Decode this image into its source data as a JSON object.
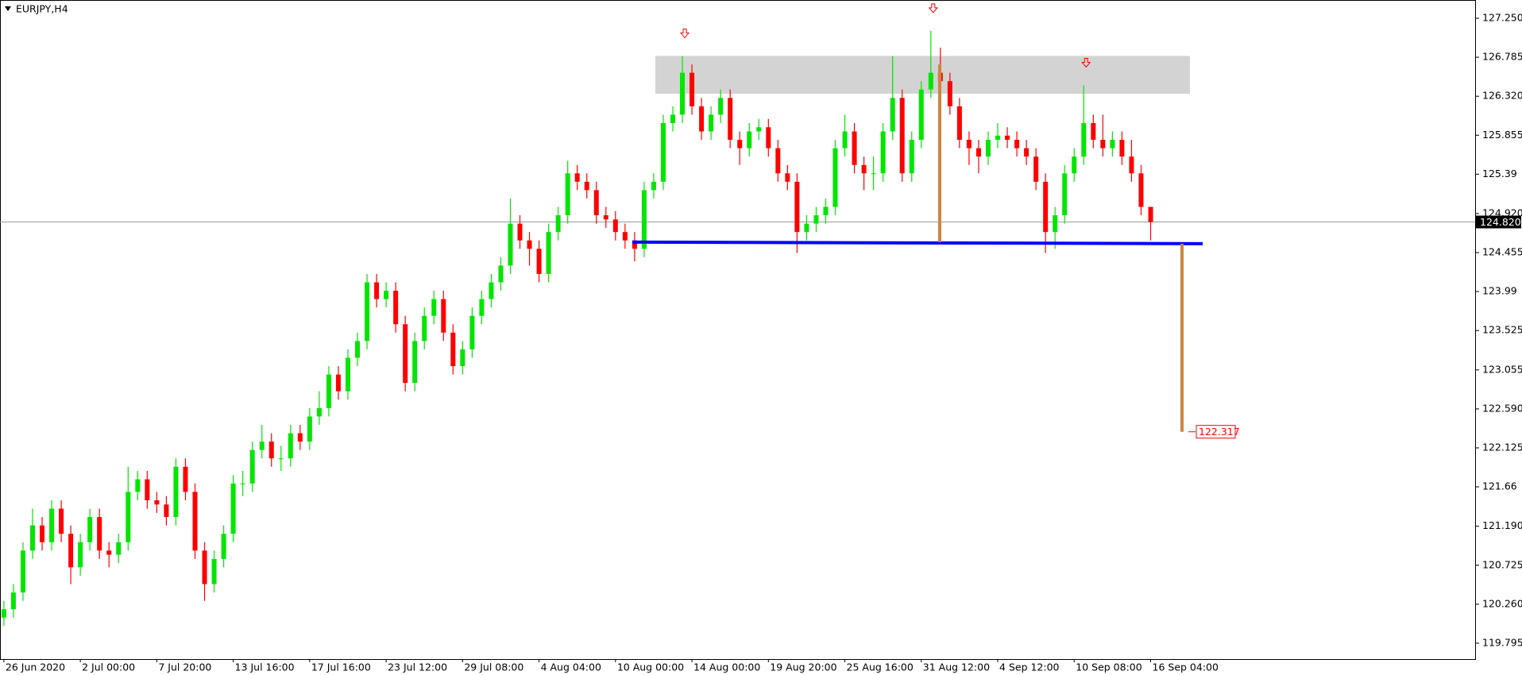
{
  "chart_data": {
    "type": "candlestick",
    "title": "EURJPY,H4",
    "bull_color": "#00e600",
    "bear_color": "#ff0000",
    "categories": [
      "26 Jun 2020",
      null,
      null,
      null,
      null,
      null,
      null,
      null,
      "2 Jul 00:00",
      null,
      null,
      null,
      null,
      null,
      null,
      null,
      "7 Jul 20:00",
      null,
      null,
      null,
      null,
      null,
      null,
      null,
      "13 Jul 16:00",
      null,
      null,
      null,
      null,
      null,
      null,
      null,
      "17 Jul 16:00",
      null,
      null,
      null,
      null,
      null,
      null,
      null,
      "23 Jul 12:00",
      null,
      null,
      null,
      null,
      null,
      null,
      null,
      "29 Jul 08:00",
      null,
      null,
      null,
      null,
      null,
      null,
      null,
      "4 Aug 04:00",
      null,
      null,
      null,
      null,
      null,
      null,
      null,
      "10 Aug 00:00",
      null,
      null,
      null,
      null,
      null,
      null,
      null,
      "14 Aug 00:00",
      null,
      null,
      null,
      null,
      null,
      null,
      null,
      "19 Aug 20:00",
      null,
      null,
      null,
      null,
      null,
      null,
      null,
      "25 Aug 16:00",
      null,
      null,
      null,
      null,
      null,
      null,
      null,
      "31 Aug 12:00",
      null,
      null,
      null,
      null,
      null,
      null,
      null,
      "4 Sep 12:00",
      null,
      null,
      null,
      null,
      null,
      null,
      null,
      "10 Sep 08:00",
      null,
      null,
      null,
      null,
      null,
      null,
      null,
      "16 Sep 04:00"
    ],
    "open": [
      120.1,
      120.2,
      120.4,
      120.9,
      121.2,
      121.0,
      121.4,
      121.1,
      120.7,
      121.0,
      121.3,
      120.9,
      120.85,
      121.0,
      121.6,
      121.75,
      121.5,
      121.45,
      121.3,
      121.9,
      121.6,
      120.9,
      120.5,
      120.8,
      121.1,
      121.7,
      121.7,
      122.1,
      122.2,
      122.0,
      122.0,
      122.3,
      122.2,
      122.5,
      122.6,
      123.0,
      122.8,
      123.2,
      123.4,
      124.1,
      123.9,
      124.0,
      123.6,
      122.9,
      123.4,
      123.7,
      123.9,
      123.5,
      123.1,
      123.3,
      123.7,
      123.9,
      124.1,
      124.3,
      124.8,
      124.6,
      124.5,
      124.2,
      124.7,
      124.9,
      125.4,
      125.3,
      125.2,
      124.9,
      124.85,
      124.7,
      124.6,
      124.5,
      125.2,
      125.3,
      126.0,
      126.1,
      126.6,
      126.2,
      125.9,
      126.1,
      126.3,
      125.8,
      125.7,
      125.9,
      125.95,
      125.7,
      125.4,
      125.3,
      124.7,
      124.8,
      124.9,
      125.0,
      125.7,
      125.9,
      125.5,
      125.4,
      125.4,
      125.9,
      126.3,
      125.4,
      125.8,
      126.4,
      126.6,
      126.5,
      126.2,
      125.8,
      125.7,
      125.6,
      125.8,
      125.85,
      125.8,
      125.7,
      125.6,
      125.3,
      124.7,
      124.9,
      125.4,
      125.6,
      126.0,
      125.8,
      125.7,
      125.8,
      125.6,
      125.4,
      125.0
    ],
    "high": [
      120.3,
      120.5,
      121.0,
      121.4,
      121.3,
      121.5,
      121.5,
      121.2,
      121.1,
      121.4,
      121.4,
      121.0,
      121.1,
      121.9,
      121.85,
      121.85,
      121.6,
      121.55,
      122.0,
      122.0,
      121.7,
      121.0,
      120.9,
      121.2,
      121.8,
      121.85,
      122.2,
      122.4,
      122.3,
      122.15,
      122.4,
      122.4,
      122.6,
      122.8,
      123.1,
      123.1,
      123.3,
      123.5,
      124.2,
      124.2,
      124.1,
      124.1,
      123.7,
      123.5,
      123.8,
      124.0,
      124.0,
      123.6,
      123.4,
      123.8,
      124.0,
      124.2,
      124.4,
      125.1,
      124.9,
      124.7,
      124.6,
      124.8,
      125.0,
      125.55,
      125.5,
      125.4,
      125.3,
      125.0,
      124.95,
      124.8,
      124.7,
      125.3,
      125.4,
      126.1,
      126.2,
      126.8,
      126.7,
      126.3,
      126.2,
      126.4,
      126.4,
      125.9,
      126.0,
      126.05,
      126.05,
      125.8,
      125.5,
      125.4,
      124.9,
      125.0,
      125.1,
      125.8,
      126.1,
      126.0,
      125.6,
      125.6,
      126.0,
      126.8,
      126.4,
      125.9,
      126.5,
      127.1,
      126.9,
      126.6,
      126.3,
      125.9,
      125.8,
      125.9,
      126.0,
      125.95,
      125.9,
      125.8,
      125.7,
      125.4,
      125.0,
      125.5,
      125.7,
      126.45,
      126.1,
      126.1,
      125.9,
      125.9,
      125.8,
      125.5,
      125.0
    ],
    "low": [
      120.0,
      120.1,
      120.3,
      120.8,
      120.9,
      120.9,
      121.0,
      120.5,
      120.6,
      120.9,
      120.8,
      120.7,
      120.75,
      120.9,
      121.5,
      121.4,
      121.35,
      121.2,
      121.2,
      121.5,
      120.8,
      120.3,
      120.4,
      120.7,
      121.0,
      121.55,
      121.6,
      122.0,
      121.9,
      121.85,
      121.9,
      122.1,
      122.1,
      122.4,
      122.5,
      122.7,
      122.7,
      123.1,
      123.3,
      123.8,
      123.8,
      123.5,
      122.8,
      122.8,
      123.3,
      123.6,
      123.4,
      123.0,
      123.0,
      123.2,
      123.6,
      123.8,
      124.0,
      124.2,
      124.5,
      124.3,
      124.1,
      124.1,
      124.6,
      124.8,
      125.2,
      125.1,
      124.8,
      124.75,
      124.6,
      124.5,
      124.35,
      124.4,
      125.1,
      125.2,
      125.9,
      126.0,
      126.1,
      125.8,
      125.8,
      126.0,
      125.7,
      125.5,
      125.6,
      125.8,
      125.6,
      125.3,
      125.2,
      124.45,
      124.6,
      124.7,
      124.8,
      124.9,
      125.6,
      125.4,
      125.2,
      125.2,
      125.3,
      125.8,
      125.3,
      125.3,
      125.7,
      126.3,
      126.2,
      126.1,
      125.7,
      125.5,
      125.4,
      125.5,
      125.7,
      125.7,
      125.6,
      125.5,
      125.2,
      124.45,
      124.5,
      124.8,
      125.3,
      125.5,
      125.7,
      125.6,
      125.6,
      125.5,
      125.3,
      124.9,
      124.6
    ],
    "close": [
      120.2,
      120.4,
      120.9,
      121.2,
      121.0,
      121.4,
      121.1,
      120.7,
      121.0,
      121.3,
      120.9,
      120.85,
      121.0,
      121.6,
      121.75,
      121.5,
      121.45,
      121.3,
      121.9,
      121.6,
      120.9,
      120.5,
      120.8,
      121.1,
      121.7,
      121.7,
      122.1,
      122.2,
      122.0,
      122.0,
      122.3,
      122.2,
      122.5,
      122.6,
      123.0,
      122.8,
      123.2,
      123.4,
      124.1,
      123.9,
      124.0,
      123.6,
      122.9,
      123.4,
      123.7,
      123.9,
      123.5,
      123.1,
      123.3,
      123.7,
      123.9,
      124.1,
      124.3,
      124.8,
      124.6,
      124.5,
      124.2,
      124.7,
      124.9,
      125.4,
      125.3,
      125.2,
      124.9,
      124.85,
      124.7,
      124.6,
      124.5,
      125.2,
      125.3,
      126.0,
      126.1,
      126.6,
      126.2,
      125.9,
      126.1,
      126.3,
      125.8,
      125.7,
      125.9,
      125.95,
      125.7,
      125.4,
      125.3,
      124.7,
      124.8,
      124.9,
      125.0,
      125.7,
      125.9,
      125.5,
      125.4,
      125.4,
      125.9,
      126.3,
      125.4,
      125.8,
      126.4,
      126.6,
      126.5,
      126.2,
      125.8,
      125.7,
      125.6,
      125.8,
      125.85,
      125.8,
      125.7,
      125.6,
      125.3,
      124.7,
      124.9,
      125.4,
      125.6,
      126.0,
      125.8,
      125.7,
      125.8,
      125.6,
      125.4,
      125.0,
      124.82
    ],
    "ylim": [
      119.605,
      127.468
    ],
    "yticks": [
      {
        "value": 127.25,
        "label": "127.250"
      },
      126.785,
      {
        "value": 126.32,
        "label": "126.320"
      },
      125.855,
      125.39,
      {
        "value": 124.92,
        "label": "124.920"
      },
      124.455,
      123.99,
      123.525,
      123.055,
      {
        "value": 122.59,
        "label": "122.590"
      },
      122.125,
      121.66,
      {
        "value": 121.19,
        "label": "121.190"
      },
      120.725,
      {
        "value": 120.26,
        "label": "120.260"
      },
      119.795
    ],
    "current_price": {
      "value": 124.82,
      "label": "124.820"
    },
    "zone": {
      "top": 126.8,
      "bottom": 126.35
    },
    "neckline": 124.58,
    "height_line": [
      126.7,
      124.58
    ],
    "target": 122.317
  }
}
